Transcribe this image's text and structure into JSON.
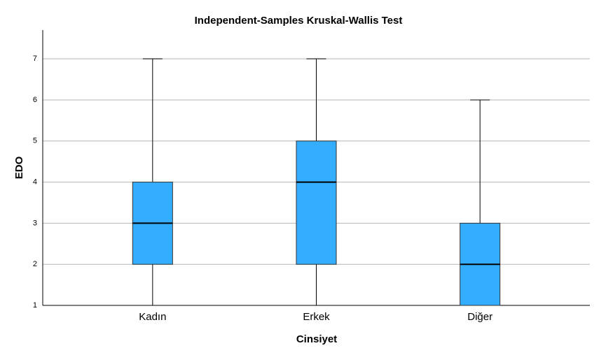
{
  "chart_data": {
    "type": "box",
    "title": "Independent-Samples Kruskal-Wallis Test",
    "x_label": "Cinsiyet",
    "y_label": "EDO",
    "categories": [
      "Kadın",
      "Erkek",
      "Diğer"
    ],
    "min": [
      1,
      1,
      1
    ],
    "q1": [
      2,
      2,
      1
    ],
    "median": [
      3,
      4,
      2
    ],
    "q3": [
      4,
      5,
      3
    ],
    "max": [
      7,
      7,
      6
    ],
    "color": "#33adff",
    "ylim": [
      1,
      7.7
    ],
    "yticks": [
      1,
      2,
      3,
      4,
      5,
      6,
      7
    ],
    "grid": true
  }
}
